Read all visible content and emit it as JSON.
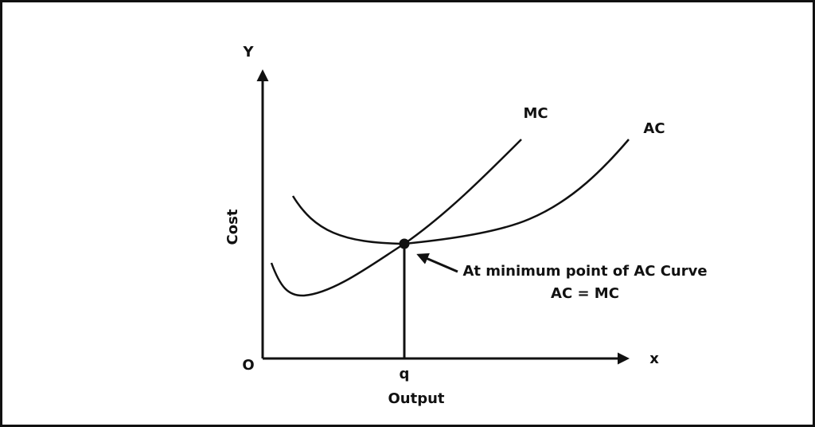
{
  "axes": {
    "y_label": "Y",
    "x_label": "x",
    "origin": "O",
    "y_title": "Cost",
    "x_title": "Output",
    "x_marker": "q"
  },
  "curves": [
    {
      "label": "MC"
    },
    {
      "label": "AC"
    }
  ],
  "annotation": {
    "lines": [
      "At minimum point of AC Curve",
      "AC = MC"
    ]
  }
}
